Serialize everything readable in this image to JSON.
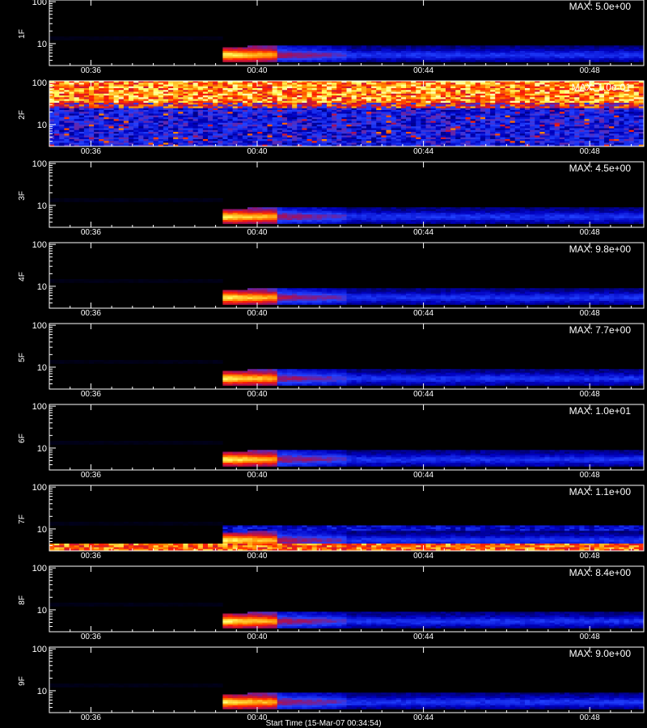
{
  "chart_data": {
    "type": "heatmap",
    "xlabel": "Start Time (15-Mar-07 00:34:54)",
    "x_ticks": [
      "00:36",
      "00:40",
      "00:44",
      "00:48"
    ],
    "x_tick_minutes": [
      36,
      40,
      44,
      48
    ],
    "x_range_minutes": [
      35.0,
      49.3
    ],
    "y_ticks": [
      "100",
      "10"
    ],
    "y_tick_values": [
      100,
      10
    ],
    "y_range": [
      3,
      110
    ],
    "y_scale": "log",
    "colormap": [
      "#000000",
      "#000030",
      "#0000c0",
      "#2040ff",
      "#a01060",
      "#ff2000",
      "#ff9000",
      "#ffff60",
      "#ffffff"
    ],
    "panels": [
      {
        "label": "1F",
        "max": "MAX: 5.0e+00",
        "pattern": "burst"
      },
      {
        "label": "2F",
        "max": "MAX: 1.0e-01",
        "pattern": "noise"
      },
      {
        "label": "3F",
        "max": "MAX: 4.5e+00",
        "pattern": "burst"
      },
      {
        "label": "4F",
        "max": "MAX: 9.8e+00",
        "pattern": "burst"
      },
      {
        "label": "5F",
        "max": "MAX: 7.7e+00",
        "pattern": "burst"
      },
      {
        "label": "6F",
        "max": "MAX: 1.0e+01",
        "pattern": "burst"
      },
      {
        "label": "7F",
        "max": "MAX: 1.1e+00",
        "pattern": "burst-band"
      },
      {
        "label": "8F",
        "max": "MAX: 8.4e+00",
        "pattern": "burst"
      },
      {
        "label": "9F",
        "max": "MAX: 9.0e+00",
        "pattern": "burst"
      }
    ]
  }
}
